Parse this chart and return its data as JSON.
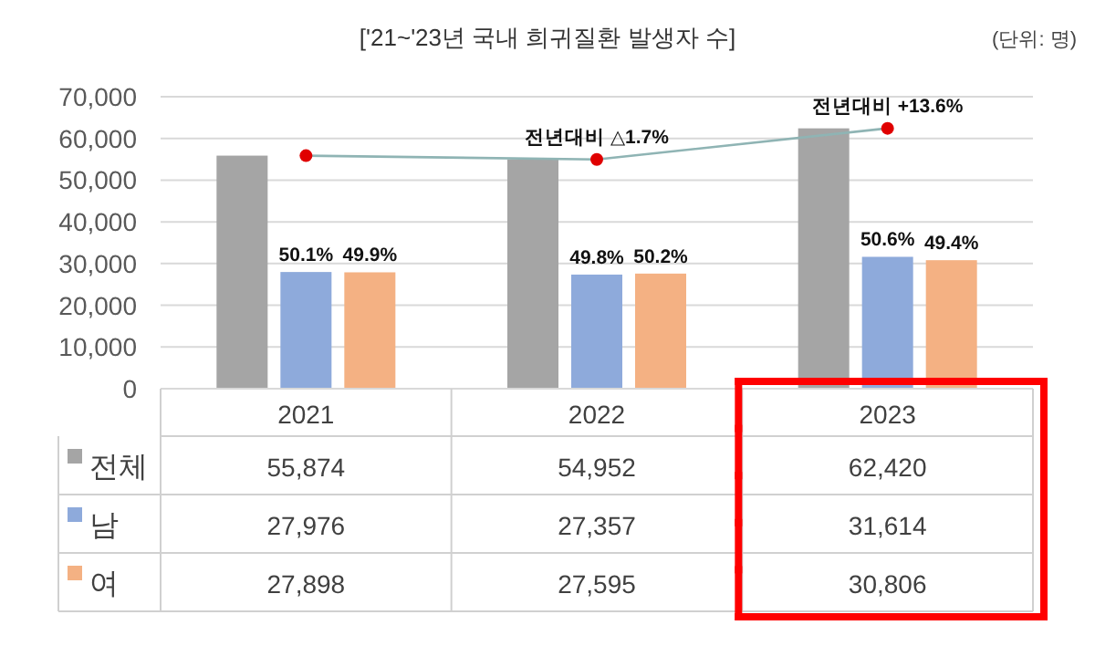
{
  "chart_data": {
    "type": "bar",
    "title": "['21~'23년 국내 희귀질환 발생자 수]",
    "subtitle": "(단위:  명)",
    "categories": [
      "2021",
      "2022",
      "2023"
    ],
    "series": [
      {
        "name": "전체",
        "color": "#a5a5a5",
        "values": [
          55874,
          54952,
          62420
        ]
      },
      {
        "name": "남",
        "color": "#8eaadb",
        "values": [
          27976,
          27357,
          31614
        ]
      },
      {
        "name": "여",
        "color": "#f4b183",
        "values": [
          27898,
          27595,
          30806
        ]
      },
      {
        "type": "line",
        "color": "#8fb4b4",
        "values": [
          55874,
          54952,
          62420
        ]
      },
      {
        "type": "scatter",
        "color": "#e00000",
        "values": [
          55874,
          54952,
          62420
        ]
      }
    ],
    "ylim": [
      0,
      70000
    ],
    "yticks": [
      {
        "value": 0,
        "label": "0"
      },
      {
        "value": 10000,
        "label": "10,000"
      },
      {
        "value": 20000,
        "label": "20,000"
      },
      {
        "value": 30000,
        "label": "30,000"
      },
      {
        "value": 40000,
        "label": "40,000"
      },
      {
        "value": 50000,
        "label": "50,000"
      },
      {
        "value": 60000,
        "label": "60,000"
      },
      {
        "value": 70000,
        "label": "70,000"
      }
    ],
    "grid": "y",
    "legend": "bottom",
    "annotations": [
      {
        "text": "전년대비 △1.7%",
        "x": "2022",
        "y": 54952
      },
      {
        "text": "전년대비 +13.6%",
        "x": "2023",
        "y": 62420
      },
      {
        "text": "50.1%",
        "x": "2021",
        "y": 27976
      },
      {
        "text": "49.9%",
        "x": "2021",
        "y": 27898
      },
      {
        "text": "49.8%",
        "x": "2022",
        "y": 27357
      },
      {
        "text": "50.2%",
        "x": "2022",
        "y": 27595
      },
      {
        "text": "50.6%",
        "x": "2023",
        "y": 31614
      },
      {
        "text": "49.4%",
        "x": "2023",
        "y": 30806
      },
      "55,874",
      "54,952",
      "62,420",
      "27,976",
      "27,357",
      "31,614",
      "27,898",
      "27,595",
      "30,806"
    ]
  }
}
